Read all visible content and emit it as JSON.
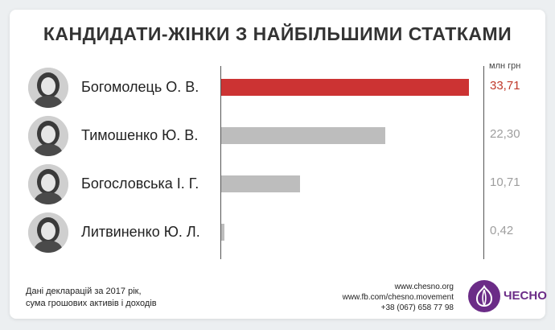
{
  "title": "КАНДИДАТИ-ЖІНКИ З НАЙБІЛЬШИМИ СТАТКАМИ",
  "chart_data": {
    "type": "bar",
    "orientation": "horizontal",
    "title": "КАНДИДАТИ-ЖІНКИ З НАЙБІЛЬШИМИ СТАТКАМИ",
    "unit": "млн грн",
    "categories": [
      "Богомолець О. В.",
      "Тимошенко Ю. В.",
      "Богословська І. Г.",
      "Литвиненко Ю. Л."
    ],
    "values": [
      33.71,
      22.3,
      10.71,
      0.42
    ],
    "value_labels": [
      "33,71",
      "22,30",
      "10,71",
      "0,42"
    ],
    "xlim": [
      0,
      33.71
    ],
    "grid": false,
    "legend": "none",
    "colors": [
      "#cc3333",
      "#bdbdbd",
      "#bdbdbd",
      "#bdbdbd"
    ],
    "label_colors": [
      "#c0392b",
      "#9e9e9e",
      "#9e9e9e",
      "#9e9e9e"
    ]
  },
  "footnote": [
    "Дані декларацій за 2017 рік,",
    "сума грошових активів і доходів"
  ],
  "contacts": [
    "www.chesno.org",
    "www.fb.com/chesno.movement",
    "+38 (067) 658 77 98"
  ],
  "logo": {
    "text": "ЧЕСНО",
    "color": "#6b2c87",
    "icon": "garlic-icon"
  },
  "avatars": [
    "avatar-icon",
    "avatar-icon",
    "avatar-icon",
    "avatar-icon"
  ]
}
